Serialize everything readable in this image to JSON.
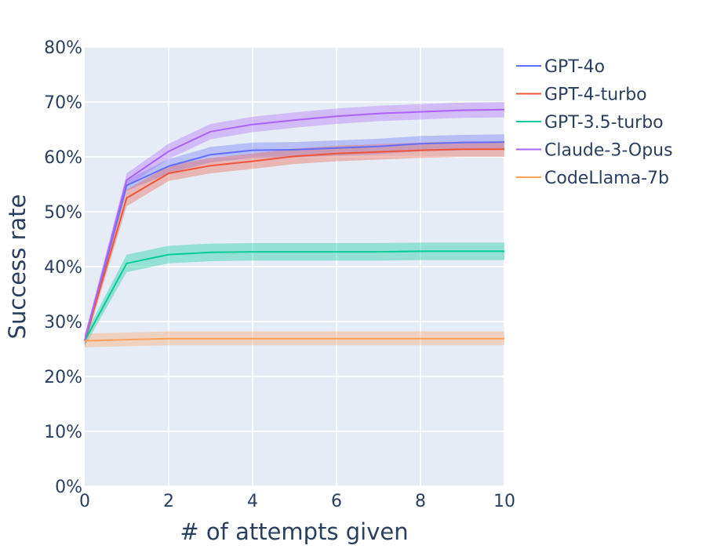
{
  "chart_data": {
    "type": "line",
    "title": "",
    "xlabel": "# of attempts given",
    "ylabel": "Success rate",
    "xlim": [
      0,
      10
    ],
    "ylim": [
      0,
      80
    ],
    "x_ticks": [
      0,
      2,
      4,
      6,
      8,
      10
    ],
    "y_ticks": [
      0,
      10,
      20,
      30,
      40,
      50,
      60,
      70,
      80
    ],
    "x_tick_labels": [
      "0",
      "2",
      "4",
      "6",
      "8",
      "10"
    ],
    "y_tick_labels": [
      "0%",
      "10%",
      "20%",
      "30%",
      "40%",
      "50%",
      "60%",
      "70%",
      "80%"
    ],
    "grid": true,
    "legend_position": "top-right, outside plot",
    "background_color": "#e5ecf6",
    "x": [
      0,
      1,
      2,
      3,
      4,
      5,
      6,
      7,
      8,
      9,
      10
    ],
    "series": [
      {
        "name": "GPT-4o",
        "color": "#636efa",
        "values": [
          26.5,
          54.8,
          58.3,
          60.4,
          61.2,
          61.3,
          61.6,
          61.9,
          62.4,
          62.6,
          62.7
        ],
        "lower": [
          25.5,
          53.8,
          57.0,
          59.0,
          59.8,
          59.9,
          60.2,
          60.5,
          61.0,
          61.2,
          61.3
        ],
        "upper": [
          27.5,
          55.8,
          59.6,
          61.8,
          62.6,
          62.7,
          63.0,
          63.3,
          63.8,
          64.0,
          64.1
        ]
      },
      {
        "name": "GPT-4-turbo",
        "color": "#ef553b",
        "values": [
          26.5,
          52.5,
          57.0,
          58.4,
          59.2,
          60.1,
          60.6,
          60.9,
          61.2,
          61.4,
          61.4
        ],
        "lower": [
          25.5,
          51.0,
          55.6,
          57.0,
          57.8,
          58.7,
          59.2,
          59.5,
          59.8,
          60.0,
          60.0
        ],
        "upper": [
          27.5,
          54.0,
          58.4,
          59.8,
          60.6,
          61.5,
          62.0,
          62.3,
          62.6,
          62.8,
          62.8
        ]
      },
      {
        "name": "GPT-3.5-turbo",
        "color": "#00cc96",
        "values": [
          26.5,
          40.6,
          42.2,
          42.6,
          42.7,
          42.7,
          42.7,
          42.7,
          42.8,
          42.8,
          42.8
        ],
        "lower": [
          25.5,
          39.0,
          40.6,
          41.0,
          41.1,
          41.1,
          41.1,
          41.1,
          41.2,
          41.2,
          41.2
        ],
        "upper": [
          27.5,
          42.2,
          43.8,
          44.2,
          44.3,
          44.3,
          44.3,
          44.3,
          44.4,
          44.4,
          44.4
        ]
      },
      {
        "name": "Claude-3-Opus",
        "color": "#ab63fa",
        "values": [
          26.5,
          55.8,
          61.0,
          64.6,
          65.9,
          66.7,
          67.4,
          67.9,
          68.2,
          68.5,
          68.6
        ],
        "lower": [
          25.5,
          54.6,
          59.6,
          63.2,
          64.5,
          65.3,
          66.0,
          66.5,
          66.8,
          67.1,
          67.2
        ],
        "upper": [
          27.5,
          57.0,
          62.4,
          66.0,
          67.3,
          68.1,
          68.8,
          69.3,
          69.6,
          69.9,
          70.0
        ]
      },
      {
        "name": "CodeLlama-7b",
        "color": "#ffa15a",
        "values": [
          26.5,
          26.7,
          26.9,
          26.9,
          26.9,
          26.9,
          26.9,
          26.9,
          26.9,
          26.9,
          26.9
        ],
        "lower": [
          25.3,
          25.5,
          25.7,
          25.7,
          25.7,
          25.7,
          25.7,
          25.7,
          25.7,
          25.7,
          25.7
        ],
        "upper": [
          27.8,
          28.0,
          28.2,
          28.2,
          28.2,
          28.2,
          28.2,
          28.2,
          28.2,
          28.2,
          28.2
        ]
      }
    ]
  }
}
